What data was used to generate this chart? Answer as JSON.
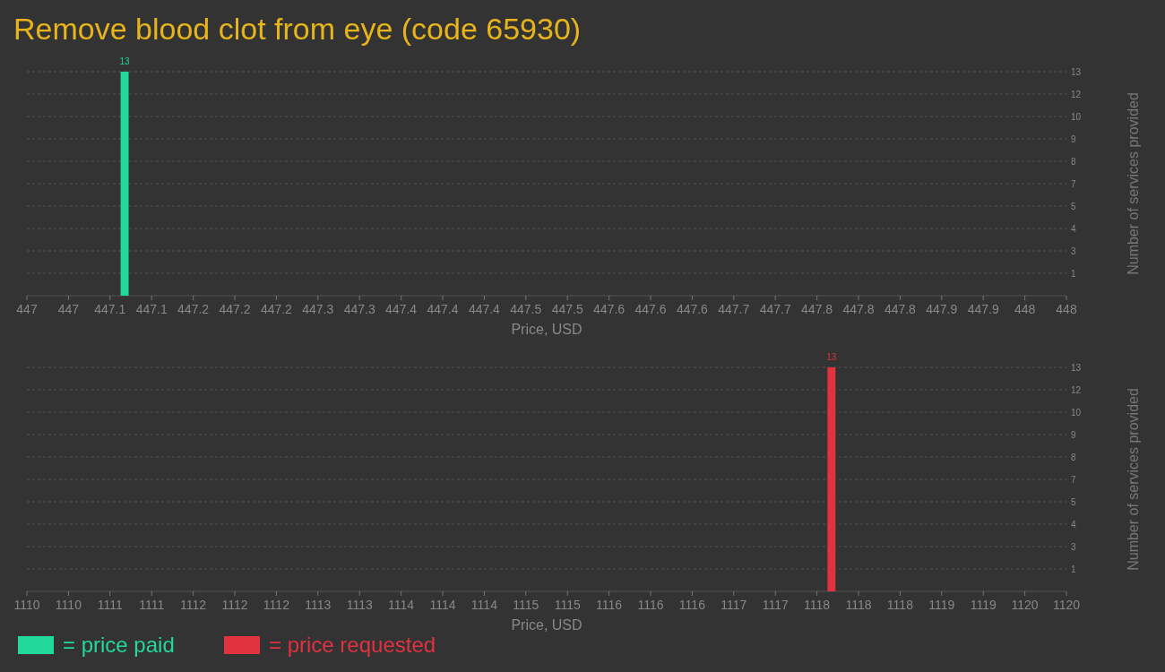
{
  "chart_data": [
    {
      "type": "bar",
      "title": "Remove blood clot from eye (code 65930)",
      "xlabel": "Price, USD",
      "ylabel": "Number of services provided",
      "x": [
        447.094
      ],
      "series": [
        {
          "name": "= price paid",
          "color": "#22d89b",
          "values": [
            13
          ]
        }
      ],
      "xlim": [
        447,
        448
      ],
      "xticks": [
        447,
        {
          "value": 447.04,
          "label": "447"
        },
        {
          "value": 447.08,
          "label": "447.1"
        },
        {
          "value": 447.12,
          "label": "447.1"
        },
        {
          "value": 447.16,
          "label": "447.2"
        },
        {
          "value": 447.2,
          "label": "447.2"
        },
        {
          "value": 447.24,
          "label": "447.2"
        },
        {
          "value": 447.28,
          "label": "447.3"
        },
        {
          "value": 447.32,
          "label": "447.3"
        },
        {
          "value": 447.36,
          "label": "447.4"
        },
        {
          "value": 447.4,
          "label": "447.4"
        },
        {
          "value": 447.44,
          "label": "447.4"
        },
        {
          "value": 447.48,
          "label": "447.5"
        },
        {
          "value": 447.52,
          "label": "447.5"
        },
        {
          "value": 447.56,
          "label": "447.6"
        },
        {
          "value": 447.6,
          "label": "447.6"
        },
        {
          "value": 447.64,
          "label": "447.6"
        },
        {
          "value": 447.68,
          "label": "447.7"
        },
        {
          "value": 447.72,
          "label": "447.7"
        },
        {
          "value": 447.76,
          "label": "447.8"
        },
        {
          "value": 447.8,
          "label": "447.8"
        },
        {
          "value": 447.84,
          "label": "447.8"
        },
        {
          "value": 447.88,
          "label": "447.9"
        },
        {
          "value": 447.92,
          "label": "447.9"
        },
        {
          "value": 447.96,
          "label": "448"
        },
        448
      ],
      "ylim": [
        0,
        13
      ],
      "yticks": [
        {
          "value": 1.3,
          "label": "1"
        },
        {
          "value": 2.6,
          "label": "3"
        },
        {
          "value": 3.9,
          "label": "4"
        },
        {
          "value": 5.2,
          "label": "5"
        },
        {
          "value": 6.5,
          "label": "7"
        },
        {
          "value": 7.8,
          "label": "8"
        },
        {
          "value": 9.1,
          "label": "9"
        },
        {
          "value": 10.4,
          "label": "10"
        },
        {
          "value": 11.7,
          "label": "12"
        },
        13
      ],
      "grid": "y",
      "data_labels": true,
      "legend": "bottom"
    },
    {
      "type": "bar",
      "xlabel": "Price, USD",
      "ylabel": "Number of services provided",
      "x": [
        1117.74
      ],
      "series": [
        {
          "name": "= price requested",
          "color": "#e0323f",
          "values": [
            13
          ]
        }
      ],
      "xlim": [
        1110,
        1120
      ],
      "xticks": [
        1110,
        {
          "value": 1110.4,
          "label": "1110"
        },
        {
          "value": 1110.8,
          "label": "1111"
        },
        {
          "value": 1111.2,
          "label": "1111"
        },
        {
          "value": 1111.6,
          "label": "1112"
        },
        {
          "value": 1112,
          "label": "1112"
        },
        {
          "value": 1112.4,
          "label": "1112"
        },
        {
          "value": 1112.8,
          "label": "1113"
        },
        {
          "value": 1113.2,
          "label": "1113"
        },
        {
          "value": 1113.6,
          "label": "1114"
        },
        {
          "value": 1114,
          "label": "1114"
        },
        {
          "value": 1114.4,
          "label": "1114"
        },
        {
          "value": 1114.8,
          "label": "1115"
        },
        {
          "value": 1115.2,
          "label": "1115"
        },
        {
          "value": 1115.6,
          "label": "1116"
        },
        {
          "value": 1116,
          "label": "1116"
        },
        {
          "value": 1116.4,
          "label": "1116"
        },
        {
          "value": 1116.8,
          "label": "1117"
        },
        {
          "value": 1117.2,
          "label": "1117"
        },
        {
          "value": 1117.6,
          "label": "1118"
        },
        {
          "value": 1118,
          "label": "1118"
        },
        {
          "value": 1118.4,
          "label": "1118"
        },
        {
          "value": 1118.8,
          "label": "1119"
        },
        {
          "value": 1119.2,
          "label": "1119"
        },
        {
          "value": 1119.6,
          "label": "1120"
        },
        1120
      ],
      "ylim": [
        0,
        13
      ],
      "yticks": [
        {
          "value": 1.3,
          "label": "1"
        },
        {
          "value": 2.6,
          "label": "3"
        },
        {
          "value": 3.9,
          "label": "4"
        },
        {
          "value": 5.2,
          "label": "5"
        },
        {
          "value": 6.5,
          "label": "7"
        },
        {
          "value": 7.8,
          "label": "8"
        },
        {
          "value": 9.1,
          "label": "9"
        },
        {
          "value": 10.4,
          "label": "10"
        },
        {
          "value": 11.7,
          "label": "12"
        },
        13
      ],
      "grid": "y",
      "data_labels": true,
      "legend": "bottom"
    }
  ]
}
